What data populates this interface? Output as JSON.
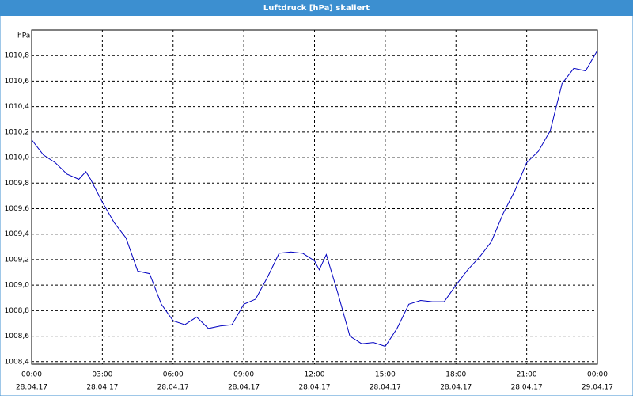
{
  "window_title": "Luftdruck [hPa] skaliert",
  "chart_data": {
    "type": "line",
    "ylabel": "hPa",
    "x": [
      0,
      0.5,
      1,
      1.5,
      2,
      2.3,
      2.5,
      3,
      3.5,
      4,
      4.5,
      5,
      5.5,
      6,
      6.5,
      7,
      7.5,
      8,
      8.5,
      9,
      9.5,
      10,
      10.5,
      11,
      11.5,
      12,
      12.2,
      12.5,
      13,
      13.5,
      14,
      14.5,
      15,
      15.5,
      16,
      16.5,
      17,
      17.5,
      18,
      18.5,
      19,
      19.5,
      20,
      20.5,
      21,
      21.5,
      22,
      22.5,
      23,
      23.5,
      24
    ],
    "series": [
      {
        "name": "Luftdruck",
        "color": "#0000c0",
        "values": [
          1010.14,
          1010.02,
          1009.96,
          1009.87,
          1009.83,
          1009.89,
          1009.83,
          1009.65,
          1009.49,
          1009.37,
          1009.11,
          1009.09,
          1008.85,
          1008.72,
          1008.69,
          1008.75,
          1008.66,
          1008.68,
          1008.69,
          1008.85,
          1008.89,
          1009.06,
          1009.25,
          1009.26,
          1009.25,
          1009.19,
          1009.12,
          1009.24,
          1008.93,
          1008.6,
          1008.54,
          1008.55,
          1008.52,
          1008.66,
          1008.85,
          1008.88,
          1008.87,
          1008.87,
          1009.0,
          1009.12,
          1009.22,
          1009.34,
          1009.56,
          1009.74,
          1009.96,
          1010.05,
          1010.21,
          1010.58,
          1010.7,
          1010.68,
          1010.84
        ]
      }
    ],
    "xlim": [
      0,
      24
    ],
    "xticks": [
      {
        "value": 0,
        "label": "00:00",
        "date": "28.04.17"
      },
      {
        "value": 3,
        "label": "03:00",
        "date": "28.04.17"
      },
      {
        "value": 6,
        "label": "06:00",
        "date": "28.04.17"
      },
      {
        "value": 9,
        "label": "09:00",
        "date": "28.04.17"
      },
      {
        "value": 12,
        "label": "12:00",
        "date": "28.04.17"
      },
      {
        "value": 15,
        "label": "15:00",
        "date": "28.04.17"
      },
      {
        "value": 18,
        "label": "18:00",
        "date": "28.04.17"
      },
      {
        "value": 21,
        "label": "21:00",
        "date": "28.04.17"
      },
      {
        "value": 24,
        "label": "00:00",
        "date": "29.04.17"
      }
    ],
    "ylim": [
      1008.38,
      1011.0
    ],
    "yticks": [
      {
        "value": 1008.4,
        "label": "1008,4"
      },
      {
        "value": 1008.6,
        "label": "1008,6"
      },
      {
        "value": 1008.8,
        "label": "1008,8"
      },
      {
        "value": 1009.0,
        "label": "1009,0"
      },
      {
        "value": 1009.2,
        "label": "1009,2"
      },
      {
        "value": 1009.4,
        "label": "1009,4"
      },
      {
        "value": 1009.6,
        "label": "1009,6"
      },
      {
        "value": 1009.8,
        "label": "1009,8"
      },
      {
        "value": 1010.0,
        "label": "1010,0"
      },
      {
        "value": 1010.2,
        "label": "1010,2"
      },
      {
        "value": 1010.4,
        "label": "1010,4"
      },
      {
        "value": 1010.6,
        "label": "1010,6"
      },
      {
        "value": 1010.8,
        "label": "1010,8"
      }
    ],
    "grid": true
  }
}
